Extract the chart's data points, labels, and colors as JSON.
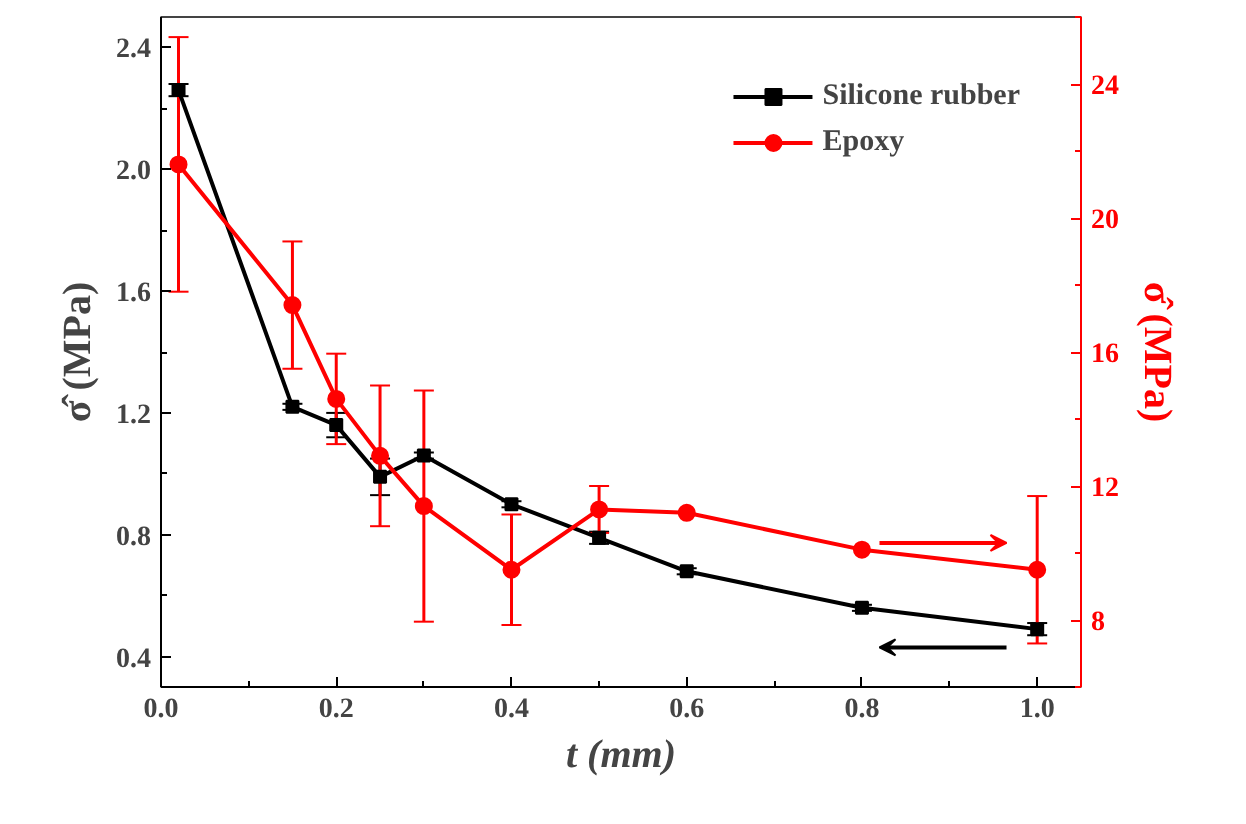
{
  "chart_data": {
    "type": "line",
    "xlabel": "t (mm)",
    "ylabel": "σ̂ (MPa)",
    "y2label": "σ̂ (MPa)",
    "x": [
      0.02,
      0.15,
      0.2,
      0.25,
      0.3,
      0.4,
      0.5,
      0.6,
      0.8,
      1.0
    ],
    "series": [
      {
        "name": "Silicone rubber",
        "color": "#000000",
        "marker": "square",
        "values": [
          2.26,
          1.22,
          1.16,
          0.99,
          1.06,
          0.9,
          0.79,
          0.68,
          0.56,
          0.49
        ],
        "errors": [
          0.02,
          0.01,
          0.04,
          0.06,
          0.01,
          0.01,
          0.02,
          0.01,
          0.01,
          0.02
        ]
      },
      {
        "name": "Epoxy",
        "color": "#ff0000",
        "marker": "circle",
        "axis": "y2",
        "values": [
          21.6,
          17.4,
          14.6,
          12.9,
          11.4,
          9.5,
          11.3,
          11.2,
          10.1,
          9.5
        ],
        "errors": [
          3.8,
          1.9,
          1.35,
          2.1,
          3.45,
          1.65,
          0.7,
          null,
          null,
          2.2
        ]
      }
    ],
    "xlim": [
      0,
      1.05
    ],
    "xticks": [
      {
        "value": 0.0,
        "label": "0.0"
      },
      0.2,
      0.4,
      0.6,
      0.8,
      {
        "value": 1.0,
        "label": "1.0"
      }
    ],
    "ylim": [
      0.3,
      2.5
    ],
    "yticks": [
      0.4,
      0.8,
      1.2,
      1.6,
      {
        "value": 2.0,
        "label": "2.0"
      },
      2.4
    ],
    "y2lim": [
      6,
      26
    ],
    "y2ticks": [
      8,
      12,
      16,
      20,
      24
    ],
    "grid": false,
    "legend": "top right"
  }
}
